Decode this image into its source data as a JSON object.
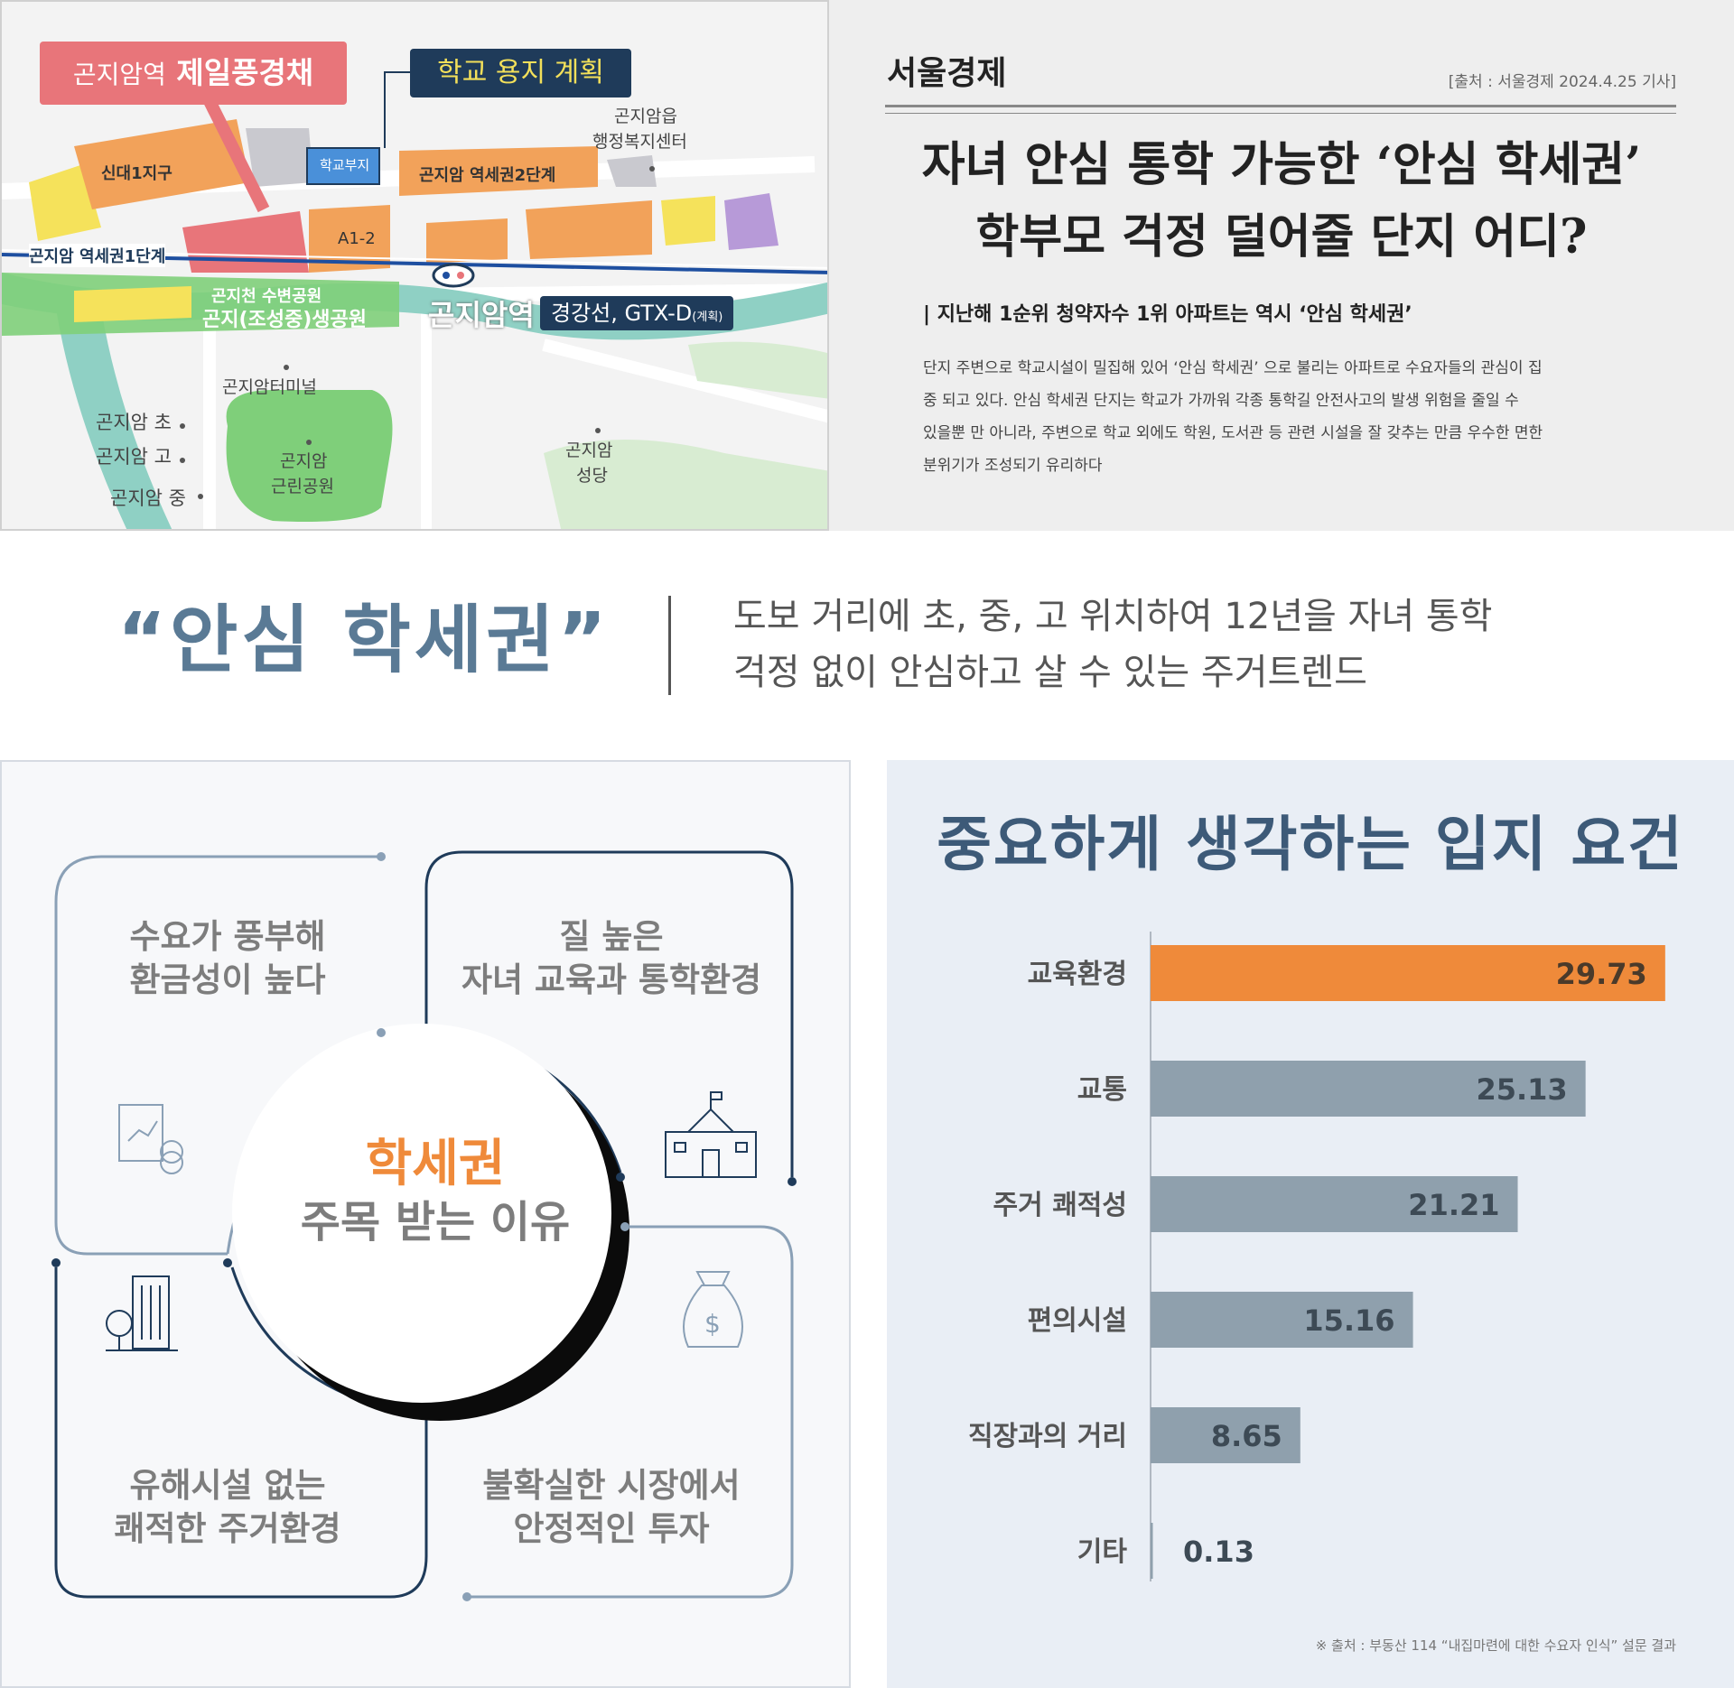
{
  "map": {
    "tag_red_prefix": "곤지암역",
    "tag_red_name": "제일풍경채",
    "tag_navy": "학교 용지 계획",
    "labels": {
      "admin_center_1": "곤지암읍",
      "admin_center_2": "행정복지센터",
      "sindae": "신대1지구",
      "school_site": "학교부지",
      "station_area_2": "곤지암 역세권2단계",
      "station_area_1": "곤지암 역세권1단계",
      "a12": "A1-2",
      "park_top": "곤지천 수변공원",
      "park_bottom": "곤지(조성중)생공원",
      "station": "곤지암역",
      "line": "경강선, GTX-D",
      "line_note": "(계획)",
      "terminal": "곤지암터미널",
      "elem": "곤지암 초",
      "high": "곤지암 고",
      "middle": "곤지암 중",
      "park_name_1": "곤지암",
      "park_name_2": "근린공원",
      "church_1": "곤지암",
      "church_2": "성당"
    },
    "colors": {
      "orange_block": "#f2a25a",
      "red_block": "#e8757a",
      "yellow_block": "#f5e25b",
      "gray_block": "#c9c9cf",
      "green_park": "#7fcf7a",
      "river": "#8fd0c4",
      "rail": "#1e4fa0"
    }
  },
  "news": {
    "brand": "서울경제",
    "source": "[출처 : 서울경제 2024.4.25 기사]",
    "headline_1": "자녀 안심 통학 가능한 ‘안심 학세권’",
    "headline_2": "학부모 걱정 덜어줄 단지 어디?",
    "subhead": "| 지난해 1순위 청약자수 1위 아파트는 역시 ‘안심 학세권’",
    "body_lines": [
      "단지 주변으로 학교시설이 밀집해 있어 ‘안심 학세권’ 으로 불리는 아파트로 수요자들의 관심이 집",
      "중    되고 있다. 안심 학세권 단지는 학교가 가까워 각종 통학길 안전사고의 발생 위험을 줄일 수",
      "있을뿐    만 아니라, 주변으로 학교 외에도 학원, 도서관 등 관련 시설을 잘 갖추는 만큼 우수한 면한",
      "분위기가    조성되기 유리하다"
    ]
  },
  "middle": {
    "slogan": "“안심 학세권”",
    "line_1": "도보 거리에 초, 중, 고 위치하여 12년을 자녀 통학",
    "line_2": "걱정 없이 안심하고 살 수 있는       주거트렌드"
  },
  "reasons": {
    "center_title": "학세권",
    "center_sub": "주목 받는 이유",
    "q1_line1": "수요가 풍부해",
    "q1_line2": "환금성이 높다",
    "q2_line1": "질 높은",
    "q2_line2": "자녀 교육과 통학환경",
    "q3_line1": "유해시설 없는",
    "q3_line2": "쾌적한 주거환경",
    "q4_line1": "불확실한 시장에서",
    "q4_line2": "안정적인 투자",
    "icons": [
      "chart-coins-icon",
      "school-icon",
      "building-tree-icon",
      "money-bag-icon"
    ],
    "colors": {
      "accent": "#ef8a3a",
      "line_dark": "#1f3b5a",
      "line_light": "#8aa0b6"
    }
  },
  "chart": {
    "title": "중요하게 생각하는 입지 요건",
    "note": "※ 출처 : 부동산 114 “내집마련에 대한 수요자 인식” 설문 결과",
    "colors": {
      "highlight": "#ef8a3a",
      "bar": "#8fa0ad",
      "label": "#555555"
    }
  },
  "chart_data": {
    "type": "bar",
    "orientation": "horizontal",
    "title": "중요하게 생각하는 입지 요건",
    "categories": [
      "교육환경",
      "교통",
      "주거 쾌적성",
      "편의시설",
      "직장과의 거리",
      "기타"
    ],
    "values": [
      29.73,
      25.13,
      21.21,
      15.16,
      8.65,
      0.13
    ],
    "value_labels": [
      "29.73",
      "25.13",
      "21.21",
      "15.16",
      "8.65",
      "0.13"
    ],
    "highlight_index": 0,
    "xlim": [
      0,
      30
    ],
    "grid": false,
    "legend": "none"
  }
}
